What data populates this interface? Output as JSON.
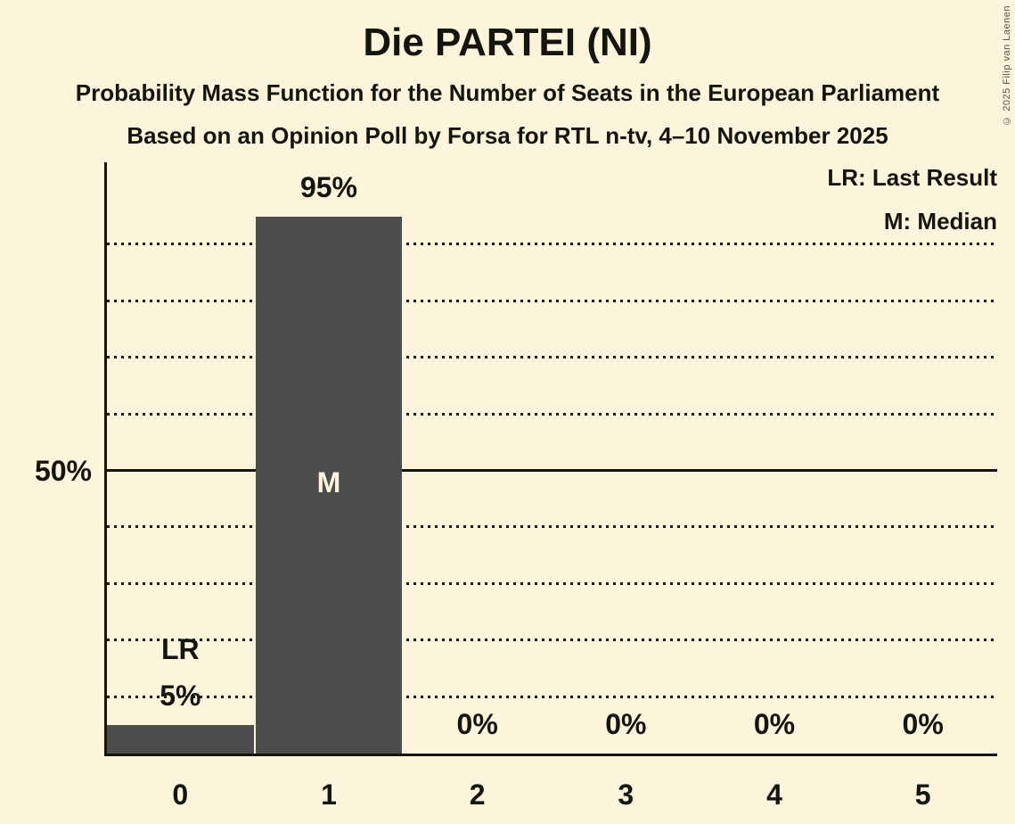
{
  "chart_data": {
    "type": "bar",
    "title": "Die PARTEI (NI)",
    "subtitle": "Probability Mass Function for the Number of Seats in the European Parliament",
    "subtitle2": "Based on an Opinion Poll by Forsa for RTL n-tv, 4–10 November 2025",
    "categories": [
      "0",
      "1",
      "2",
      "3",
      "4",
      "5"
    ],
    "values": [
      5,
      95,
      0,
      0,
      0,
      0
    ],
    "value_labels": [
      "5%",
      "95%",
      "0%",
      "0%",
      "0%",
      "0%"
    ],
    "annotations": [
      {
        "bar": 0,
        "text": "LR",
        "placement": "above-value-label"
      },
      {
        "bar": 1,
        "text": "M",
        "placement": "inside-bar"
      }
    ],
    "y_axis_tick_label": "50%",
    "ylim": [
      0,
      104
    ],
    "solid_gridline_pct": 50,
    "dotted_gridlines_pct": [
      10,
      20,
      30,
      40,
      60,
      70,
      80,
      90
    ],
    "legend": [
      "LR: Last Result",
      "M: Median"
    ],
    "copyright": "© 2025 Filip van Laenen",
    "colors": {
      "background": "#FCF5DC",
      "bar": "#4D4D4D",
      "text": "#15150E",
      "bar_inner_label": "#FCF5DC"
    }
  }
}
